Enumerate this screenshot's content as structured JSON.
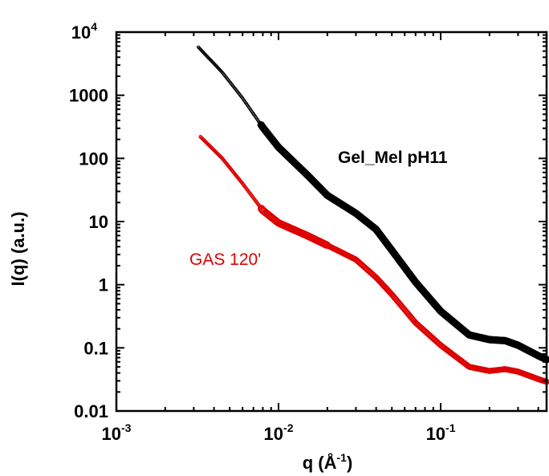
{
  "chart_data": {
    "type": "scatter",
    "xscale": "log",
    "yscale": "log",
    "xlim": [
      0.001,
      0.45
    ],
    "ylim": [
      0.01,
      10000
    ],
    "grid": false,
    "xlabel": {
      "base": "q (Å",
      "sup": "-1",
      "close": ")"
    },
    "ylabel": "I(q)  (a.u.)",
    "x_ticks": [
      {
        "value": 0.001,
        "base": "10",
        "exp": "-3"
      },
      {
        "value": 0.01,
        "base": "10",
        "exp": "-2"
      },
      {
        "value": 0.1,
        "base": "10",
        "exp": "-1"
      }
    ],
    "y_ticks": [
      {
        "value": 0.01,
        "label": "0.01"
      },
      {
        "value": 0.1,
        "label": "0.1"
      },
      {
        "value": 1,
        "label": "1"
      },
      {
        "value": 10,
        "label": "10"
      },
      {
        "value": 100,
        "label": "100"
      },
      {
        "value": 1000,
        "label": "1000"
      },
      {
        "value": 10000,
        "label": "10",
        "exp": "4"
      }
    ],
    "series": [
      {
        "name": "Gel_Mel pH11",
        "color": "#000000",
        "marker": "filled-circle",
        "profile": [
          [
            0.0032,
            5800
          ],
          [
            0.0045,
            2300
          ],
          [
            0.006,
            900
          ],
          [
            0.008,
            310
          ],
          [
            0.01,
            150
          ],
          [
            0.015,
            55
          ],
          [
            0.02,
            26
          ],
          [
            0.03,
            13.5
          ],
          [
            0.04,
            7.5
          ],
          [
            0.05,
            3.5
          ],
          [
            0.07,
            1.1
          ],
          [
            0.1,
            0.38
          ],
          [
            0.15,
            0.16
          ],
          [
            0.2,
            0.135
          ],
          [
            0.25,
            0.13
          ],
          [
            0.3,
            0.11
          ],
          [
            0.4,
            0.075
          ],
          [
            0.45,
            0.065
          ]
        ]
      },
      {
        "name": "GAS 120'",
        "color": "#dd0000",
        "marker": "open-circle",
        "profile": [
          [
            0.0033,
            220
          ],
          [
            0.0045,
            100
          ],
          [
            0.006,
            40
          ],
          [
            0.008,
            15
          ],
          [
            0.01,
            9.5
          ],
          [
            0.015,
            6
          ],
          [
            0.02,
            4.2
          ],
          [
            0.03,
            2.5
          ],
          [
            0.04,
            1.3
          ],
          [
            0.05,
            0.7
          ],
          [
            0.07,
            0.25
          ],
          [
            0.1,
            0.11
          ],
          [
            0.15,
            0.05
          ],
          [
            0.2,
            0.043
          ],
          [
            0.25,
            0.046
          ],
          [
            0.3,
            0.042
          ],
          [
            0.4,
            0.032
          ],
          [
            0.45,
            0.029
          ]
        ]
      }
    ],
    "annotations": [
      {
        "text": "Gel_Mel pH11",
        "color": "#000000"
      },
      {
        "text": "GAS 120'",
        "color": "#dd0000"
      }
    ]
  }
}
